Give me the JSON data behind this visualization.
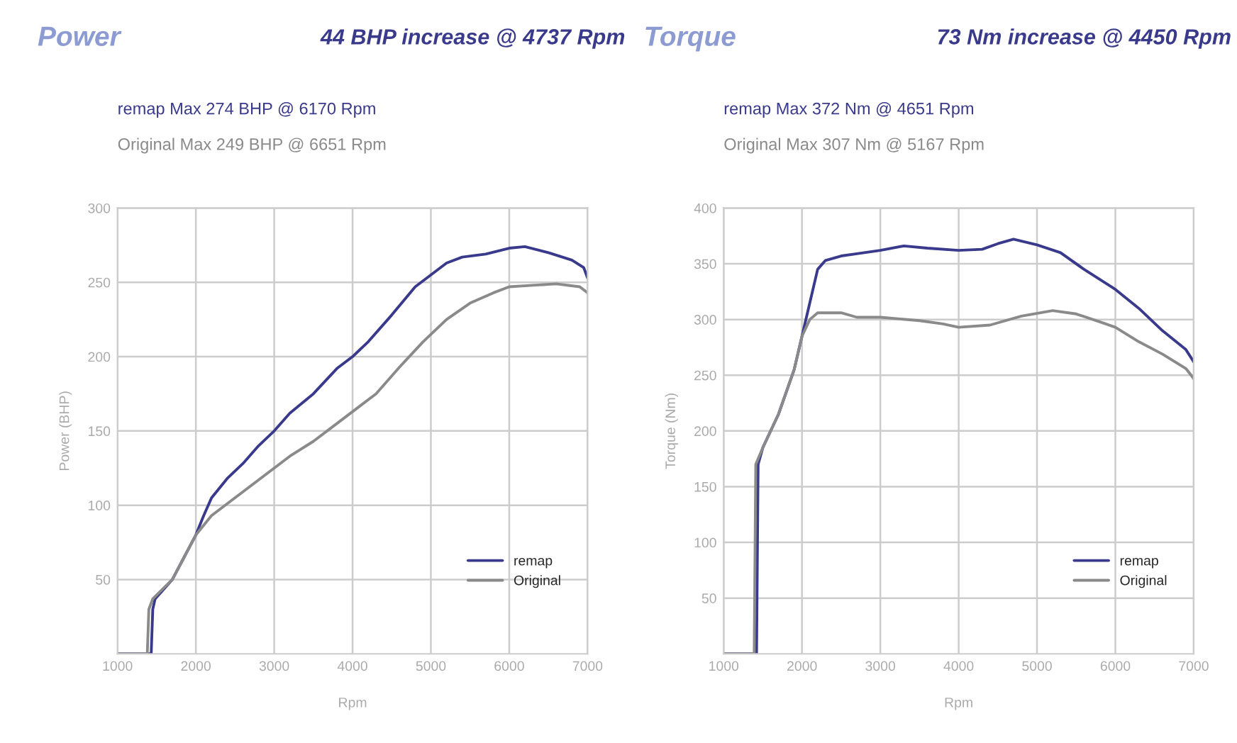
{
  "chart_data": [
    {
      "type": "line",
      "title": "Power",
      "subtitle": "44 BHP increase @ 4737 Rpm",
      "xlabel": "Rpm",
      "ylabel": "Power (BHP)",
      "annotations": [
        "remap Max 274 BHP @ 6170 Rpm",
        "Original Max 249 BHP @ 6651 Rpm"
      ],
      "xlim": [
        1000,
        7000
      ],
      "ylim": [
        0,
        300
      ],
      "xticks": [
        1000,
        2000,
        3000,
        4000,
        5000,
        6000,
        7000
      ],
      "yticks": [
        50,
        100,
        150,
        200,
        250,
        300
      ],
      "grid": true,
      "legend": "bottom right",
      "series": [
        {
          "name": "remap",
          "color": "#3a3a8c",
          "x": [
            1000,
            1430,
            1450,
            1480,
            1700,
            1850,
            2000,
            2100,
            2200,
            2400,
            2600,
            2800,
            3000,
            3200,
            3500,
            3800,
            4000,
            4200,
            4500,
            4800,
            5000,
            5200,
            5400,
            5700,
            6000,
            6200,
            6500,
            6800,
            6950,
            7000
          ],
          "values": [
            0,
            0,
            30,
            37,
            50,
            65,
            80,
            93,
            105,
            118,
            128,
            140,
            150,
            162,
            175,
            192,
            200,
            210,
            228,
            247,
            255,
            263,
            267,
            269,
            273,
            274,
            270,
            265,
            260,
            253
          ]
        },
        {
          "name": "Original",
          "color": "#8a8a8a",
          "x": [
            1000,
            1380,
            1400,
            1450,
            1700,
            1850,
            2000,
            2200,
            2400,
            2600,
            2800,
            3000,
            3200,
            3500,
            3800,
            4000,
            4300,
            4600,
            4900,
            5200,
            5500,
            5800,
            6000,
            6300,
            6600,
            6900,
            7000
          ],
          "values": [
            0,
            0,
            30,
            37,
            50,
            65,
            80,
            93,
            101,
            109,
            117,
            125,
            133,
            143,
            155,
            163,
            175,
            193,
            210,
            225,
            236,
            243,
            247,
            248,
            249,
            247,
            243
          ]
        }
      ]
    },
    {
      "type": "line",
      "title": "Torque",
      "subtitle": "73 Nm increase @ 4450 Rpm",
      "xlabel": "Rpm",
      "ylabel": "Torque (Nm)",
      "annotations": [
        "remap Max 372 Nm @ 4651 Rpm",
        "Original Max 307 Nm @ 5167 Rpm"
      ],
      "xlim": [
        1000,
        7000
      ],
      "ylim": [
        0,
        400
      ],
      "xticks": [
        1000,
        2000,
        3000,
        4000,
        5000,
        6000,
        7000
      ],
      "yticks": [
        50,
        100,
        150,
        200,
        250,
        300,
        350,
        400
      ],
      "grid": true,
      "legend": "bottom right",
      "series": [
        {
          "name": "remap",
          "color": "#3a3a8c",
          "x": [
            1000,
            1420,
            1440,
            1500,
            1700,
            1900,
            2000,
            2100,
            2200,
            2300,
            2500,
            2700,
            3000,
            3300,
            3600,
            4000,
            4300,
            4500,
            4700,
            5000,
            5300,
            5600,
            6000,
            6300,
            6600,
            6900,
            7000
          ],
          "values": [
            0,
            0,
            170,
            185,
            215,
            255,
            285,
            315,
            345,
            353,
            357,
            359,
            362,
            366,
            364,
            362,
            363,
            368,
            372,
            367,
            360,
            345,
            327,
            310,
            290,
            273,
            262
          ]
        },
        {
          "name": "Original",
          "color": "#8a8a8a",
          "x": [
            1000,
            1390,
            1410,
            1500,
            1700,
            1900,
            2000,
            2100,
            2200,
            2500,
            2700,
            3000,
            3500,
            3800,
            4000,
            4400,
            4800,
            5200,
            5500,
            5800,
            6000,
            6300,
            6600,
            6900,
            7000
          ],
          "values": [
            0,
            0,
            170,
            185,
            215,
            255,
            285,
            300,
            306,
            306,
            302,
            302,
            299,
            296,
            293,
            295,
            303,
            308,
            305,
            298,
            293,
            280,
            269,
            256,
            247
          ]
        }
      ]
    }
  ]
}
